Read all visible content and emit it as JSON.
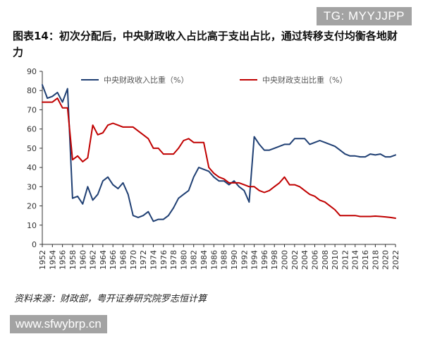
{
  "watermark_top": "TG: MYYJJPP",
  "watermark_bottom": "www.sfwybrp.cn",
  "title": "图表14：初次分配后，中央财政收入占比高于支出占比，通过转移支付均衡各地财力",
  "source": "资料来源：财政部，粤开证券研究院罗志恒计算",
  "colors": {
    "revenue": "#1f3f73",
    "expenditure": "#c00000"
  },
  "chart_data": {
    "type": "line",
    "title": "",
    "xlabel": "",
    "ylabel": "",
    "ylim": [
      0,
      90
    ],
    "yticks": [
      0,
      10,
      20,
      30,
      40,
      50,
      60,
      70,
      80,
      90
    ],
    "xlim": [
      1952,
      2022
    ],
    "xticks": [
      1952,
      1954,
      1956,
      1958,
      1960,
      1962,
      1964,
      1966,
      1968,
      1970,
      1972,
      1974,
      1976,
      1978,
      1980,
      1982,
      1984,
      1986,
      1988,
      1990,
      1992,
      1994,
      1996,
      1998,
      2000,
      2002,
      2004,
      2006,
      2008,
      2010,
      2012,
      2014,
      2016,
      2018,
      2020,
      2022
    ],
    "grid": false,
    "legend_position": "top",
    "x": [
      1952,
      1953,
      1954,
      1955,
      1956,
      1957,
      1958,
      1959,
      1960,
      1961,
      1962,
      1963,
      1964,
      1965,
      1966,
      1967,
      1968,
      1969,
      1970,
      1971,
      1972,
      1973,
      1974,
      1975,
      1976,
      1977,
      1978,
      1979,
      1980,
      1981,
      1982,
      1983,
      1984,
      1985,
      1986,
      1987,
      1988,
      1989,
      1990,
      1991,
      1992,
      1993,
      1994,
      1995,
      1996,
      1997,
      1998,
      1999,
      2000,
      2001,
      2002,
      2003,
      2004,
      2005,
      2006,
      2007,
      2008,
      2009,
      2010,
      2011,
      2012,
      2013,
      2014,
      2015,
      2016,
      2017,
      2018,
      2019,
      2020,
      2021,
      2022
    ],
    "series": [
      {
        "name": "中央财政收入比重（%）",
        "values": [
          83,
          76,
          77,
          79,
          74,
          81,
          24,
          25,
          21,
          30,
          23,
          26,
          33,
          35,
          31,
          29,
          32,
          26,
          15,
          14,
          15,
          17,
          12,
          13,
          13,
          15,
          19,
          24,
          26,
          28,
          35,
          40,
          39,
          38,
          35,
          33,
          33,
          31,
          33,
          30,
          28,
          22,
          56,
          52,
          49,
          49,
          50,
          51,
          52,
          52,
          55,
          55,
          55,
          52,
          53,
          54,
          53,
          52,
          51,
          49,
          47,
          46,
          46,
          45.5,
          45.5,
          47,
          46.5,
          47,
          45.5,
          45.5,
          46.5
        ]
      },
      {
        "name": "中央财政支出比重（%）",
        "values": [
          74,
          74,
          74,
          76,
          71,
          71,
          44,
          46,
          43,
          45,
          62,
          57,
          58,
          62,
          63,
          62,
          61,
          61,
          61,
          59,
          57,
          55,
          50,
          50,
          47,
          47,
          47,
          50,
          54,
          55,
          53,
          53,
          53,
          40,
          37,
          35,
          34,
          32,
          32,
          32,
          31,
          30,
          30,
          28,
          27,
          28,
          30,
          32,
          35,
          31,
          31,
          30,
          28,
          26,
          25,
          23,
          22,
          20,
          18,
          15,
          15,
          15,
          15,
          14.5,
          14.5,
          14.5,
          14.7,
          14.5,
          14.3,
          14.0,
          13.6
        ]
      }
    ]
  }
}
